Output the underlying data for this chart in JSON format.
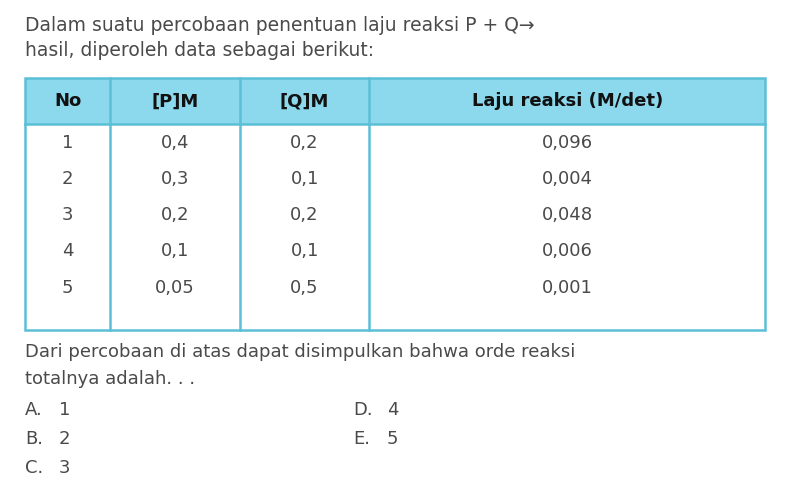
{
  "title_line1": "Dalam suatu percobaan penentuan laju reaksi P + Q→",
  "title_line2": "hasil, diperoleh data sebagai berikut:",
  "col_headers": [
    "No",
    "[P]M",
    "[Q]M",
    "Laju reaksi (M/det)"
  ],
  "table_data": [
    [
      "1",
      "0,4",
      "0,2",
      "0,096"
    ],
    [
      "2",
      "0,3",
      "0,1",
      "0,004"
    ],
    [
      "3",
      "0,2",
      "0,2",
      "0,048"
    ],
    [
      "4",
      "0,1",
      "0,1",
      "0,006"
    ],
    [
      "5",
      "0,05",
      "0,5",
      "0,001"
    ]
  ],
  "footer_line1": "Dari percobaan di atas dapat disimpulkan bahwa orde reaksi",
  "footer_line2": "totalnya adalah. . .",
  "options_left": [
    [
      "A.",
      "1"
    ],
    [
      "B.",
      "2"
    ],
    [
      "C.",
      "3"
    ]
  ],
  "options_right": [
    [
      "D.",
      "4"
    ],
    [
      "E.",
      "5"
    ]
  ],
  "bg_color": "#ffffff",
  "text_color": "#4a4a4a",
  "header_bg": "#8cd8ed",
  "table_border_color": "#5bbfd6",
  "header_text_color": "#111111",
  "font_size_title": 13.5,
  "font_size_table": 13,
  "font_size_footer": 13
}
